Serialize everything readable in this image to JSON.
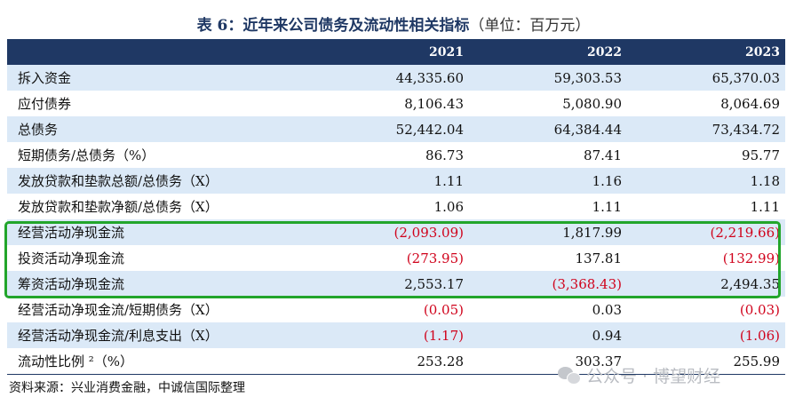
{
  "title": {
    "main": "表 6：近年来公司债务及流动性相关指标",
    "unit": "（单位：百万元）"
  },
  "table": {
    "headers": [
      "",
      "2021",
      "2022",
      "2023"
    ],
    "rows": [
      {
        "label": "拆入资金",
        "values": [
          "44,335.60",
          "59,303.53",
          "65,370.03"
        ]
      },
      {
        "label": "应付债券",
        "values": [
          "8,106.43",
          "5,080.90",
          "8,064.69"
        ]
      },
      {
        "label": "总债务",
        "values": [
          "52,442.04",
          "64,384.44",
          "73,434.72"
        ]
      },
      {
        "label": "短期债务/总债务（%）",
        "values": [
          "86.73",
          "87.41",
          "95.77"
        ]
      },
      {
        "label": "发放贷款和垫款总额/总债务（X）",
        "values": [
          "1.11",
          "1.16",
          "1.18"
        ]
      },
      {
        "label": "发放贷款和垫款净额/总债务（X）",
        "values": [
          "1.06",
          "1.11",
          "1.11"
        ]
      },
      {
        "label": "经营活动净现金流",
        "values": [
          "(2,093.09)",
          "1,817.99",
          "(2,219.66)"
        ]
      },
      {
        "label": "投资活动净现金流",
        "values": [
          "(273.95)",
          "137.81",
          "(132.99)"
        ]
      },
      {
        "label": "筹资活动净现金流",
        "values": [
          "2,553.17",
          "(3,368.43)",
          "2,494.35"
        ]
      },
      {
        "label": "经营活动净现金流/短期债务（X）",
        "values": [
          "(0.05)",
          "0.03",
          "(0.03)"
        ]
      },
      {
        "label": "经营活动净现金流/利息支出（X）",
        "values": [
          "(1.17)",
          "0.94",
          "(1.06)"
        ]
      },
      {
        "label": "流动性比例 ²（%）",
        "values": [
          "253.28",
          "303.37",
          "255.99"
        ]
      }
    ]
  },
  "source": "资料来源：兴业消费金融，中诚信国际整理",
  "watermark": "公众号 · 博望财经",
  "colors": {
    "header_bg": "#1f3864",
    "row_alt": "#dbe9f7",
    "negative": "#d0021b",
    "highlight": "#22a52b"
  }
}
